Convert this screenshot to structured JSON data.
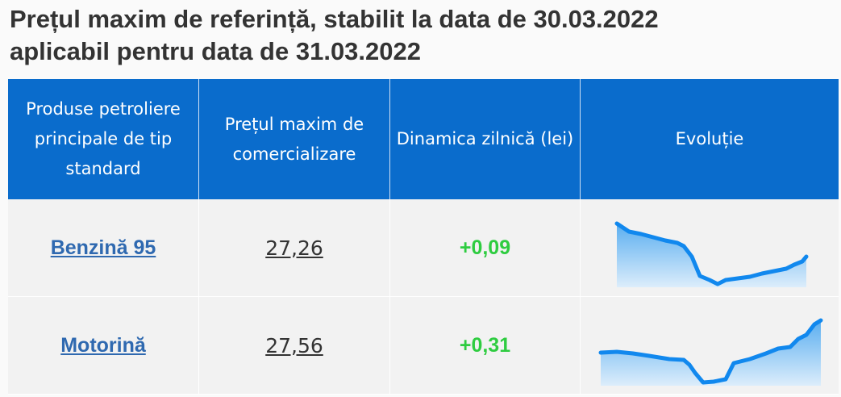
{
  "title": [
    "Prețul maxim de referință, stabilit la data de 30.03.2022",
    "aplicabil pentru data de 31.03.2022"
  ],
  "table": {
    "headers": [
      "Produse petroliere principale de tip standard",
      "Prețul maxim de comercializare",
      "Dinamica zilnică (lei)",
      "Evoluție"
    ],
    "rows": [
      [
        "Benzină 95",
        "27,26",
        "+0,09"
      ],
      [
        "Motorină",
        "27,56",
        "+0,31"
      ]
    ]
  }
}
